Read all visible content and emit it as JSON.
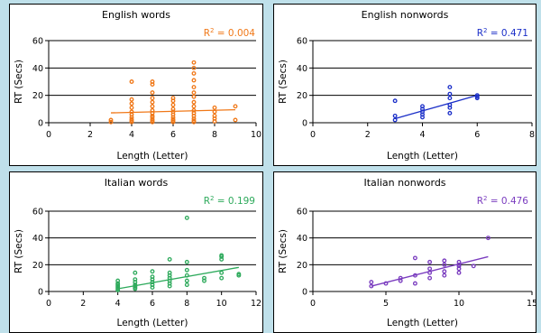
{
  "chart_data": [
    {
      "type": "scatter",
      "title": "English words",
      "xlabel": "Length (Letter)",
      "ylabel": "RT (Secs)",
      "xlim": [
        0,
        10
      ],
      "ylim": [
        0,
        60
      ],
      "xticks": [
        0,
        2,
        4,
        6,
        8,
        10
      ],
      "yticks": [
        0,
        20,
        40,
        60
      ],
      "grid": "horizontal",
      "r2_label": "R",
      "r2_sup": "2",
      "r2_value": " = 0.004",
      "color": "#f07818",
      "trend": {
        "x": [
          3,
          9
        ],
        "y": [
          7.2,
          9.5
        ]
      },
      "points": [
        {
          "x": 3,
          "y": 0.5
        },
        {
          "x": 3,
          "y": 2
        },
        {
          "x": 4,
          "y": 0.5
        },
        {
          "x": 4,
          "y": 1.5
        },
        {
          "x": 4,
          "y": 2.5
        },
        {
          "x": 4,
          "y": 4
        },
        {
          "x": 4,
          "y": 6
        },
        {
          "x": 4,
          "y": 8
        },
        {
          "x": 4,
          "y": 11
        },
        {
          "x": 4,
          "y": 14
        },
        {
          "x": 4,
          "y": 17
        },
        {
          "x": 4,
          "y": 30
        },
        {
          "x": 5,
          "y": 0.5
        },
        {
          "x": 5,
          "y": 1.5
        },
        {
          "x": 5,
          "y": 2.5
        },
        {
          "x": 5,
          "y": 4
        },
        {
          "x": 5,
          "y": 5
        },
        {
          "x": 5,
          "y": 7
        },
        {
          "x": 5,
          "y": 9
        },
        {
          "x": 5,
          "y": 12
        },
        {
          "x": 5,
          "y": 15
        },
        {
          "x": 5,
          "y": 18
        },
        {
          "x": 5,
          "y": 22
        },
        {
          "x": 5,
          "y": 28
        },
        {
          "x": 5,
          "y": 30
        },
        {
          "x": 6,
          "y": 0.5
        },
        {
          "x": 6,
          "y": 1.5
        },
        {
          "x": 6,
          "y": 2.5
        },
        {
          "x": 6,
          "y": 4
        },
        {
          "x": 6,
          "y": 6
        },
        {
          "x": 6,
          "y": 8
        },
        {
          "x": 6,
          "y": 10
        },
        {
          "x": 6,
          "y": 13
        },
        {
          "x": 6,
          "y": 16
        },
        {
          "x": 6,
          "y": 18
        },
        {
          "x": 7,
          "y": 0.5
        },
        {
          "x": 7,
          "y": 1.5
        },
        {
          "x": 7,
          "y": 3
        },
        {
          "x": 7,
          "y": 5
        },
        {
          "x": 7,
          "y": 7
        },
        {
          "x": 7,
          "y": 9
        },
        {
          "x": 7,
          "y": 12
        },
        {
          "x": 7,
          "y": 15
        },
        {
          "x": 7,
          "y": 19
        },
        {
          "x": 7,
          "y": 22
        },
        {
          "x": 7,
          "y": 26
        },
        {
          "x": 7,
          "y": 31
        },
        {
          "x": 7,
          "y": 36
        },
        {
          "x": 7,
          "y": 40
        },
        {
          "x": 7,
          "y": 44
        },
        {
          "x": 8,
          "y": 1
        },
        {
          "x": 8,
          "y": 3
        },
        {
          "x": 8,
          "y": 5
        },
        {
          "x": 8,
          "y": 8
        },
        {
          "x": 8,
          "y": 11
        },
        {
          "x": 9,
          "y": 2
        },
        {
          "x": 9,
          "y": 12
        }
      ]
    },
    {
      "type": "scatter",
      "title": "English nonwords",
      "xlabel": "Length (Letter)",
      "ylabel": "RT (Secs)",
      "xlim": [
        0,
        8
      ],
      "ylim": [
        0,
        60
      ],
      "xticks": [
        0,
        2,
        4,
        6,
        8
      ],
      "yticks": [
        0,
        20,
        40,
        60
      ],
      "grid": "horizontal",
      "r2_label": "R",
      "r2_sup": "2",
      "r2_value": " = 0.471",
      "color": "#1b2fc8",
      "trend": {
        "x": [
          3,
          6
        ],
        "y": [
          3,
          20
        ]
      },
      "points": [
        {
          "x": 3,
          "y": 2
        },
        {
          "x": 3,
          "y": 5
        },
        {
          "x": 3,
          "y": 16
        },
        {
          "x": 4,
          "y": 4
        },
        {
          "x": 4,
          "y": 6
        },
        {
          "x": 4,
          "y": 8
        },
        {
          "x": 4,
          "y": 10
        },
        {
          "x": 4,
          "y": 12
        },
        {
          "x": 5,
          "y": 7
        },
        {
          "x": 5,
          "y": 11
        },
        {
          "x": 5,
          "y": 13
        },
        {
          "x": 5,
          "y": 18
        },
        {
          "x": 5,
          "y": 21
        },
        {
          "x": 5,
          "y": 26
        },
        {
          "x": 6,
          "y": 18
        },
        {
          "x": 6,
          "y": 19
        },
        {
          "x": 6,
          "y": 20
        }
      ]
    },
    {
      "type": "scatter",
      "title": "Italian words",
      "xlabel": "Length (Letter)",
      "ylabel": "RT (Secs)",
      "xlim": [
        0,
        12
      ],
      "ylim": [
        0,
        60
      ],
      "xticks": [
        0,
        2,
        4,
        6,
        8,
        10,
        12
      ],
      "yticks": [
        0,
        20,
        40,
        60
      ],
      "grid": "horizontal",
      "r2_label": "R",
      "r2_sup": "2",
      "r2_value": " = 0.199",
      "color": "#2eaa5c",
      "trend": {
        "x": [
          4,
          11
        ],
        "y": [
          2,
          18
        ]
      },
      "points": [
        {
          "x": 4,
          "y": 1
        },
        {
          "x": 4,
          "y": 2
        },
        {
          "x": 4,
          "y": 3
        },
        {
          "x": 4,
          "y": 4
        },
        {
          "x": 4,
          "y": 5
        },
        {
          "x": 4,
          "y": 6
        },
        {
          "x": 4,
          "y": 8
        },
        {
          "x": 5,
          "y": 2
        },
        {
          "x": 5,
          "y": 3
        },
        {
          "x": 5,
          "y": 4
        },
        {
          "x": 5,
          "y": 5
        },
        {
          "x": 5,
          "y": 7
        },
        {
          "x": 5,
          "y": 9
        },
        {
          "x": 5,
          "y": 14
        },
        {
          "x": 6,
          "y": 3
        },
        {
          "x": 6,
          "y": 5
        },
        {
          "x": 6,
          "y": 7
        },
        {
          "x": 6,
          "y": 9
        },
        {
          "x": 6,
          "y": 11
        },
        {
          "x": 6,
          "y": 15
        },
        {
          "x": 7,
          "y": 4
        },
        {
          "x": 7,
          "y": 6
        },
        {
          "x": 7,
          "y": 8
        },
        {
          "x": 7,
          "y": 10
        },
        {
          "x": 7,
          "y": 12
        },
        {
          "x": 7,
          "y": 14
        },
        {
          "x": 7,
          "y": 24
        },
        {
          "x": 8,
          "y": 5
        },
        {
          "x": 8,
          "y": 8
        },
        {
          "x": 8,
          "y": 12
        },
        {
          "x": 8,
          "y": 16
        },
        {
          "x": 8,
          "y": 22
        },
        {
          "x": 8,
          "y": 55
        },
        {
          "x": 9,
          "y": 8
        },
        {
          "x": 9,
          "y": 10
        },
        {
          "x": 10,
          "y": 10
        },
        {
          "x": 10,
          "y": 14
        },
        {
          "x": 10,
          "y": 24
        },
        {
          "x": 10,
          "y": 26
        },
        {
          "x": 10,
          "y": 27
        },
        {
          "x": 11,
          "y": 12
        },
        {
          "x": 11,
          "y": 13
        }
      ]
    },
    {
      "type": "scatter",
      "title": "Italian nonwords",
      "xlabel": "Length (Letter)",
      "ylabel": "RT (Secs)",
      "xlim": [
        0,
        15
      ],
      "ylim": [
        0,
        60
      ],
      "xticks": [
        0,
        5,
        10,
        15
      ],
      "yticks": [
        0,
        20,
        40,
        60
      ],
      "grid": "horizontal",
      "r2_label": "R",
      "r2_sup": "2",
      "r2_value": " = 0.476",
      "color": "#7a3cbf",
      "trend": {
        "x": [
          4,
          12
        ],
        "y": [
          4,
          26
        ]
      },
      "points": [
        {
          "x": 4,
          "y": 4
        },
        {
          "x": 4,
          "y": 7
        },
        {
          "x": 5,
          "y": 6
        },
        {
          "x": 6,
          "y": 8
        },
        {
          "x": 6,
          "y": 10
        },
        {
          "x": 7,
          "y": 6
        },
        {
          "x": 7,
          "y": 12
        },
        {
          "x": 7,
          "y": 25
        },
        {
          "x": 8,
          "y": 10
        },
        {
          "x": 8,
          "y": 14
        },
        {
          "x": 8,
          "y": 17
        },
        {
          "x": 8,
          "y": 22
        },
        {
          "x": 9,
          "y": 12
        },
        {
          "x": 9,
          "y": 15
        },
        {
          "x": 9,
          "y": 20
        },
        {
          "x": 9,
          "y": 23
        },
        {
          "x": 10,
          "y": 14
        },
        {
          "x": 10,
          "y": 17
        },
        {
          "x": 10,
          "y": 19
        },
        {
          "x": 10,
          "y": 20
        },
        {
          "x": 10,
          "y": 22
        },
        {
          "x": 11,
          "y": 19
        },
        {
          "x": 12,
          "y": 40
        }
      ]
    }
  ]
}
